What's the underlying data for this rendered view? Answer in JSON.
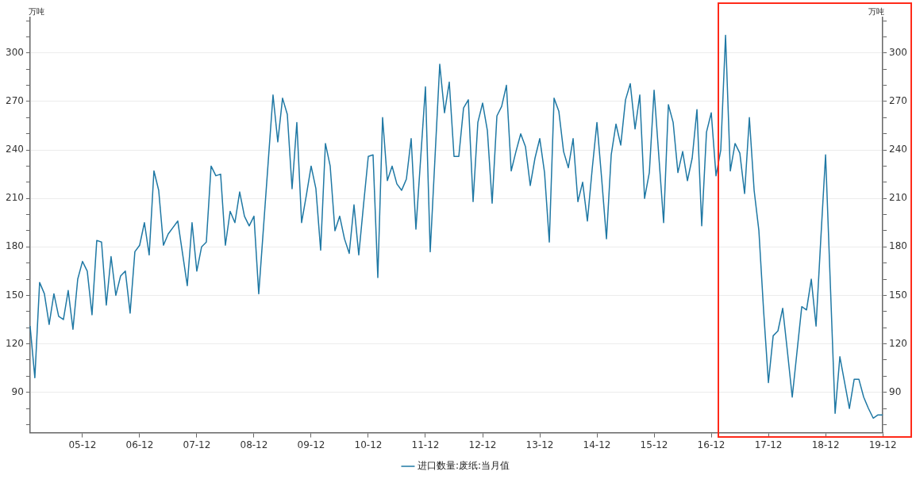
{
  "chart_data": {
    "type": "line",
    "ylabel": "万吨",
    "y2label": "万吨",
    "categories": [
      null,
      null,
      null,
      null,
      null,
      null,
      null,
      null,
      null,
      null,
      null,
      "05-12",
      null,
      null,
      null,
      null,
      null,
      null,
      null,
      null,
      null,
      null,
      null,
      "06-12",
      null,
      null,
      null,
      null,
      null,
      null,
      null,
      null,
      null,
      null,
      null,
      "07-12",
      null,
      null,
      null,
      null,
      null,
      null,
      null,
      null,
      null,
      null,
      null,
      "08-12",
      null,
      null,
      null,
      null,
      null,
      null,
      null,
      null,
      null,
      null,
      null,
      "09-12",
      null,
      null,
      null,
      null,
      null,
      null,
      null,
      null,
      null,
      null,
      null,
      "10-12",
      null,
      null,
      null,
      null,
      null,
      null,
      null,
      null,
      null,
      null,
      null,
      "11-12",
      null,
      null,
      null,
      null,
      null,
      null,
      null,
      null,
      null,
      null,
      null,
      "12-12",
      null,
      null,
      null,
      null,
      null,
      null,
      null,
      null,
      null,
      null,
      null,
      "13-12",
      null,
      null,
      null,
      null,
      null,
      null,
      null,
      null,
      null,
      null,
      null,
      "14-12",
      null,
      null,
      null,
      null,
      null,
      null,
      null,
      null,
      null,
      null,
      null,
      "15-12",
      null,
      null,
      null,
      null,
      null,
      null,
      null,
      null,
      null,
      null,
      null,
      "16-12",
      null,
      null,
      null,
      null,
      null,
      null,
      null,
      null,
      null,
      null,
      null,
      "17-12",
      null,
      null,
      null,
      null,
      null,
      null,
      null,
      null,
      null,
      null,
      null,
      "18-12",
      null,
      null,
      null,
      null,
      null,
      null,
      null,
      null,
      null,
      null,
      null,
      "19-12"
    ],
    "series": [
      {
        "name": "进口数量:废纸:当月值",
        "color": "#1f78a4",
        "values": [
          131,
          99,
          158,
          151,
          132,
          151,
          137,
          135,
          153,
          129,
          160,
          171,
          165,
          138,
          184,
          183,
          144,
          174,
          150,
          162,
          165,
          139,
          177,
          181,
          195,
          175,
          227,
          215,
          181,
          188,
          192,
          196,
          176,
          156,
          195,
          165,
          180,
          183,
          230,
          224,
          225,
          181,
          202,
          195,
          214,
          199,
          193,
          199,
          151,
          192,
          233,
          274,
          245,
          272,
          262,
          216,
          257,
          195,
          212,
          230,
          216,
          178,
          244,
          230,
          190,
          199,
          185,
          176,
          206,
          175,
          206,
          236,
          237,
          161,
          260,
          221,
          230,
          219,
          215,
          222,
          247,
          191,
          235,
          279,
          177,
          235,
          293,
          263,
          282,
          236,
          236,
          266,
          271,
          208,
          257,
          269,
          252,
          207,
          261,
          267,
          280,
          227,
          239,
          250,
          242,
          218,
          235,
          247,
          226,
          183,
          272,
          264,
          239,
          229,
          247,
          208,
          220,
          196,
          228,
          257,
          222,
          185,
          237,
          256,
          243,
          271,
          281,
          253,
          274,
          210,
          226,
          277,
          236,
          195,
          268,
          257,
          226,
          239,
          221,
          235,
          265,
          193,
          251,
          263,
          224,
          240,
          311,
          227,
          244,
          238,
          213,
          260,
          215,
          190,
          140,
          96,
          125,
          128,
          142,
          115,
          87,
          115,
          143,
          141,
          160,
          131,
          185,
          237,
          157,
          77,
          112,
          96,
          80,
          98,
          98,
          87,
          80,
          74,
          76,
          76
        ]
      }
    ],
    "ylim": [
      65,
      322
    ],
    "yticks": [
      {
        "value": 70,
        "label": null
      },
      {
        "value": 80,
        "label": null
      },
      90,
      {
        "value": 100,
        "label": null
      },
      {
        "value": 110,
        "label": null
      },
      120,
      {
        "value": 130,
        "label": null
      },
      {
        "value": 140,
        "label": null
      },
      150,
      {
        "value": 160,
        "label": null
      },
      {
        "value": 170,
        "label": null
      },
      180,
      {
        "value": 190,
        "label": null
      },
      {
        "value": 200,
        "label": null
      },
      210,
      {
        "value": 220,
        "label": null
      },
      {
        "value": 230,
        "label": null
      },
      240,
      {
        "value": 250,
        "label": null
      },
      {
        "value": 260,
        "label": null
      },
      270,
      {
        "value": 280,
        "label": null
      },
      {
        "value": 290,
        "label": null
      },
      300,
      {
        "value": 310,
        "label": null
      },
      {
        "value": 320,
        "label": null
      }
    ],
    "y2lim": [
      65,
      322
    ],
    "y2ticks": [
      {
        "value": 70,
        "label": null
      },
      {
        "value": 80,
        "label": null
      },
      90,
      {
        "value": 100,
        "label": null
      },
      {
        "value": 110,
        "label": null
      },
      120,
      {
        "value": 130,
        "label": null
      },
      {
        "value": 140,
        "label": null
      },
      150,
      {
        "value": 160,
        "label": null
      },
      {
        "value": 170,
        "label": null
      },
      180,
      {
        "value": 190,
        "label": null
      },
      {
        "value": 200,
        "label": null
      },
      210,
      {
        "value": 220,
        "label": null
      },
      {
        "value": 230,
        "label": null
      },
      240,
      {
        "value": 250,
        "label": null
      },
      {
        "value": 260,
        "label": null
      },
      270,
      {
        "value": 280,
        "label": null
      },
      {
        "value": 290,
        "label": null
      },
      300,
      {
        "value": 310,
        "label": null
      },
      {
        "value": 320,
        "label": null
      }
    ],
    "grid": "y",
    "legend": "bottom",
    "marker": "none",
    "line_style": "solid"
  }
}
